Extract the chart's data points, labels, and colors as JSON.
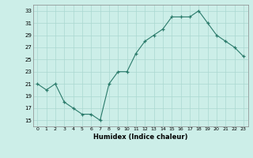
{
  "x": [
    0,
    1,
    2,
    3,
    4,
    5,
    6,
    7,
    8,
    9,
    10,
    11,
    12,
    13,
    14,
    15,
    16,
    17,
    18,
    19,
    20,
    21,
    22,
    23
  ],
  "y": [
    21,
    20,
    21,
    18,
    17,
    16,
    16,
    15,
    21,
    23,
    23,
    26,
    28,
    29,
    30,
    32,
    32,
    32,
    33,
    31,
    29,
    28,
    27,
    25.5
  ],
  "line_color": "#2a7a6a",
  "marker": "+",
  "bg_color": "#cceee8",
  "grid_color": "#aad8d0",
  "xlabel": "Humidex (Indice chaleur)",
  "ylim": [
    14,
    34
  ],
  "xlim": [
    -0.5,
    23.5
  ],
  "yticks": [
    15,
    17,
    19,
    21,
    23,
    25,
    27,
    29,
    31,
    33
  ],
  "xticks": [
    0,
    1,
    2,
    3,
    4,
    5,
    6,
    7,
    8,
    9,
    10,
    11,
    12,
    13,
    14,
    15,
    16,
    17,
    18,
    19,
    20,
    21,
    22,
    23
  ],
  "figsize": [
    3.2,
    2.0
  ],
  "dpi": 100
}
